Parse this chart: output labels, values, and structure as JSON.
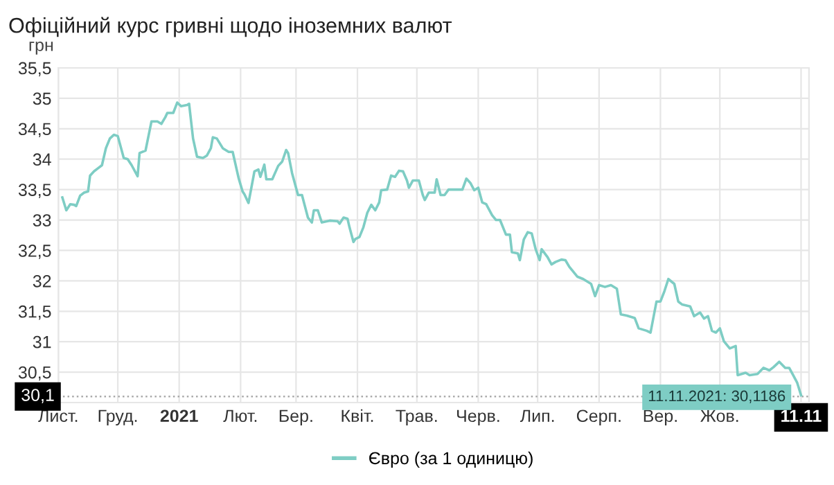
{
  "chart_data": {
    "type": "line",
    "title": "Офіційний курс гривні щодо іноземних валют",
    "ylabel": "грн",
    "x": [
      "2020-11-03",
      "2020-11-05",
      "2020-11-07",
      "2020-11-09",
      "2020-11-10",
      "2020-11-12",
      "2020-11-14",
      "2020-11-16",
      "2020-11-17",
      "2020-11-19",
      "2020-11-21",
      "2020-11-23",
      "2020-11-25",
      "2020-11-27",
      "2020-11-29",
      "2020-12-01",
      "2020-12-04",
      "2020-12-06",
      "2020-12-08",
      "2020-12-11",
      "2020-12-12",
      "2020-12-15",
      "2020-12-18",
      "2020-12-21",
      "2020-12-23",
      "2020-12-25",
      "2020-12-26",
      "2020-12-29",
      "2020-12-31",
      "2021-01-02",
      "2021-01-05",
      "2021-01-06",
      "2021-01-08",
      "2021-01-10",
      "2021-01-13",
      "2021-01-15",
      "2021-01-17",
      "2021-01-18",
      "2021-01-20",
      "2021-01-23",
      "2021-01-26",
      "2021-01-28",
      "2021-01-31",
      "2021-02-02",
      "2021-02-03",
      "2021-02-05",
      "2021-02-08",
      "2021-02-10",
      "2021-02-11",
      "2021-02-13",
      "2021-02-14",
      "2021-02-17",
      "2021-02-20",
      "2021-02-22",
      "2021-02-24",
      "2021-02-25",
      "2021-02-27",
      "2021-03-01",
      "2021-03-02",
      "2021-03-04",
      "2021-03-07",
      "2021-03-09",
      "2021-03-10",
      "2021-03-12",
      "2021-03-14",
      "2021-03-18",
      "2021-03-22",
      "2021-03-23",
      "2021-03-25",
      "2021-03-27",
      "2021-03-28",
      "2021-03-30",
      "2021-03-31",
      "2021-04-02",
      "2021-04-04",
      "2021-04-06",
      "2021-04-08",
      "2021-04-10",
      "2021-04-12",
      "2021-04-13",
      "2021-04-16",
      "2021-04-18",
      "2021-04-20",
      "2021-04-22",
      "2021-04-24",
      "2021-04-26",
      "2021-04-27",
      "2021-04-29",
      "2021-05-02",
      "2021-05-04",
      "2021-05-05",
      "2021-05-07",
      "2021-05-10",
      "2021-05-11",
      "2021-05-13",
      "2021-05-15",
      "2021-05-17",
      "2021-05-20",
      "2021-05-24",
      "2021-05-26",
      "2021-05-28",
      "2021-05-30",
      "2021-06-01",
      "2021-06-03",
      "2021-06-05",
      "2021-06-08",
      "2021-06-10",
      "2021-06-12",
      "2021-06-15",
      "2021-06-17",
      "2021-06-18",
      "2021-06-21",
      "2021-06-22",
      "2021-06-24",
      "2021-06-26",
      "2021-06-28",
      "2021-06-30",
      "2021-07-02",
      "2021-07-03",
      "2021-07-06",
      "2021-07-08",
      "2021-07-10",
      "2021-07-13",
      "2021-07-15",
      "2021-07-17",
      "2021-07-21",
      "2021-07-24",
      "2021-07-28",
      "2021-07-30",
      "2021-08-01",
      "2021-08-04",
      "2021-08-07",
      "2021-08-10",
      "2021-08-12",
      "2021-08-15",
      "2021-08-19",
      "2021-08-21",
      "2021-08-25",
      "2021-08-27",
      "2021-08-30",
      "2021-09-01",
      "2021-09-03",
      "2021-09-05",
      "2021-09-08",
      "2021-09-10",
      "2021-09-12",
      "2021-09-16",
      "2021-09-18",
      "2021-09-21",
      "2021-09-23",
      "2021-09-25",
      "2021-09-27",
      "2021-09-29",
      "2021-10-01",
      "2021-10-03",
      "2021-10-06",
      "2021-10-09",
      "2021-10-10",
      "2021-10-14",
      "2021-10-16",
      "2021-10-20",
      "2021-10-23",
      "2021-10-26",
      "2021-10-28",
      "2021-10-31",
      "2021-11-03",
      "2021-11-05",
      "2021-11-07",
      "2021-11-09",
      "2021-11-11"
    ],
    "series": [
      {
        "name": "Євро (за 1 одиницю)",
        "color": "#7ecdc4",
        "values": [
          33.37,
          33.16,
          33.26,
          33.25,
          33.23,
          33.4,
          33.45,
          33.47,
          33.73,
          33.8,
          33.85,
          33.9,
          34.18,
          34.34,
          34.4,
          34.38,
          34.02,
          34.0,
          33.9,
          33.72,
          34.1,
          34.14,
          34.62,
          34.62,
          34.58,
          34.69,
          34.76,
          34.76,
          34.93,
          34.87,
          34.89,
          34.91,
          34.34,
          34.04,
          34.02,
          34.06,
          34.18,
          34.36,
          34.34,
          34.18,
          34.12,
          34.12,
          33.69,
          33.47,
          33.42,
          33.28,
          33.8,
          33.83,
          33.71,
          33.91,
          33.67,
          33.67,
          33.89,
          33.96,
          34.15,
          34.1,
          33.77,
          33.53,
          33.41,
          33.41,
          33.04,
          32.96,
          33.16,
          33.16,
          32.96,
          32.99,
          32.98,
          32.94,
          33.04,
          33.02,
          32.88,
          32.64,
          32.69,
          32.72,
          32.88,
          33.12,
          33.25,
          33.16,
          33.29,
          33.49,
          33.5,
          33.73,
          33.71,
          33.81,
          33.8,
          33.65,
          33.53,
          33.65,
          33.65,
          33.41,
          33.33,
          33.45,
          33.45,
          33.67,
          33.41,
          33.41,
          33.5,
          33.5,
          33.5,
          33.68,
          33.61,
          33.49,
          33.53,
          33.29,
          33.26,
          33.08,
          33.0,
          33.0,
          32.76,
          32.76,
          32.47,
          32.45,
          32.34,
          32.68,
          32.8,
          32.78,
          32.52,
          32.34,
          32.52,
          32.39,
          32.27,
          32.31,
          32.35,
          32.34,
          32.23,
          32.07,
          32.03,
          31.95,
          31.75,
          31.93,
          31.9,
          31.93,
          31.87,
          31.45,
          31.43,
          31.39,
          31.22,
          31.18,
          31.15,
          31.66,
          31.66,
          31.83,
          32.03,
          31.95,
          31.66,
          31.61,
          31.58,
          31.42,
          31.48,
          31.38,
          31.42,
          31.18,
          31.15,
          31.22,
          31.01,
          30.89,
          30.93,
          30.45,
          30.49,
          30.45,
          30.47,
          30.57,
          30.53,
          30.58,
          30.67,
          30.57,
          30.57,
          30.45,
          30.33,
          30.1186
        ]
      }
    ],
    "xlim": [
      "2020-11-01",
      "2021-11-15"
    ],
    "xticks": [
      {
        "value": "2020-11-01",
        "label": "Лист."
      },
      {
        "value": "2020-12-01",
        "label": "Груд."
      },
      {
        "value": "2021-01-01",
        "label": "2021"
      },
      {
        "value": "2021-02-01",
        "label": "Лют."
      },
      {
        "value": "2021-03-01",
        "label": "Бер."
      },
      {
        "value": "2021-04-01",
        "label": "Квіт."
      },
      {
        "value": "2021-05-01",
        "label": "Трав."
      },
      {
        "value": "2021-06-01",
        "label": "Черв."
      },
      {
        "value": "2021-07-01",
        "label": "Лип."
      },
      {
        "value": "2021-08-01",
        "label": "Серп."
      },
      {
        "value": "2021-09-01",
        "label": "Вер."
      },
      {
        "value": "2021-10-01",
        "label": "Жов."
      },
      {
        "value": "2021-11-11",
        "label": "11.11"
      }
    ],
    "ylim": [
      30,
      35.5
    ],
    "yticks": [
      {
        "value": 30,
        "label": null
      },
      {
        "value": 30.5,
        "label": "30,5"
      },
      {
        "value": 31,
        "label": "31"
      },
      {
        "value": 31.5,
        "label": "31,5"
      },
      {
        "value": 32,
        "label": "32"
      },
      {
        "value": 32.5,
        "label": "32,5"
      },
      {
        "value": 33,
        "label": "33"
      },
      {
        "value": 33.5,
        "label": "33,5"
      },
      {
        "value": 34,
        "label": "34"
      },
      {
        "value": 34.5,
        "label": "34,5"
      },
      {
        "value": 35,
        "label": "35"
      },
      {
        "value": 35.5,
        "label": "35,5"
      }
    ],
    "ref_lines": [
      {
        "axis": "y",
        "value": 30.1,
        "label": "30,1",
        "color": "#aaaaaa",
        "line_style": "dotted"
      }
    ],
    "annotations": [
      {
        "text": "11.11.2021: 30,1186",
        "x": "2021-11-11",
        "y": 30.1186
      }
    ],
    "grid": true,
    "legend": "bottom",
    "marker": "none",
    "line_style": "solid"
  }
}
